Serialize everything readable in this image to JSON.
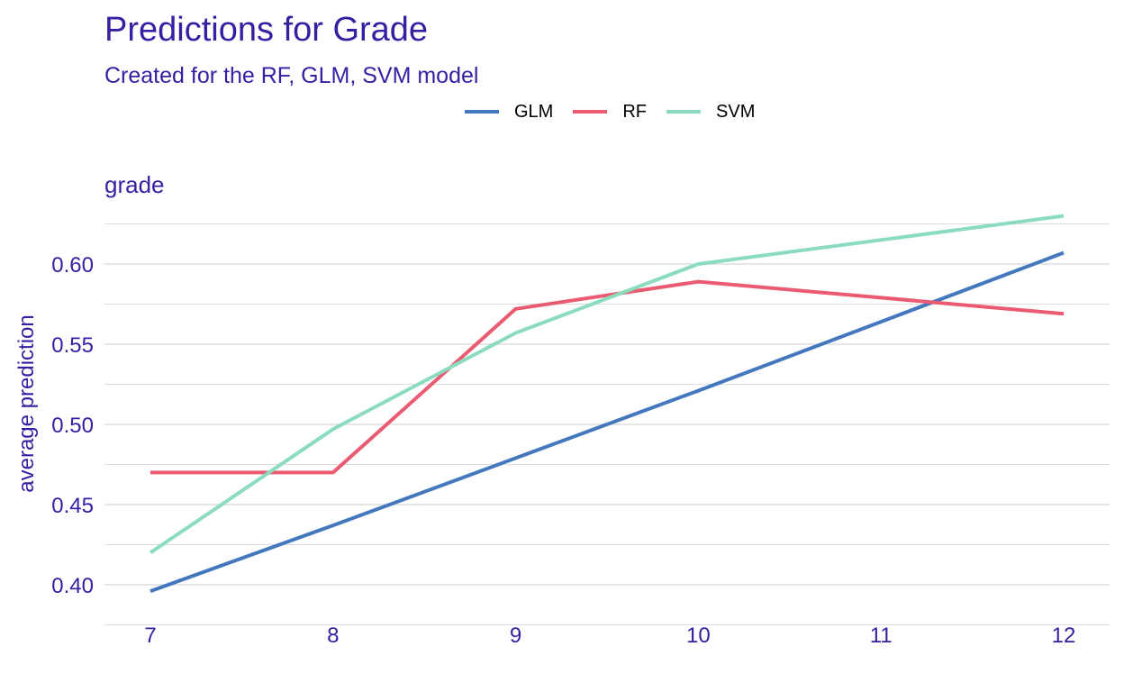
{
  "title": "Predictions for Grade",
  "subtitle": "Created for the RF, GLM, SVM model",
  "panel_label": "grade",
  "colors": {
    "text": "#371ea3",
    "grid": "#dddddd"
  },
  "legend": [
    {
      "label": "GLM",
      "color": "#4378bf"
    },
    {
      "label": "RF",
      "color": "#ea5a70"
    },
    {
      "label": "SVM",
      "color": "#8bdcbe"
    }
  ],
  "chart_data": {
    "type": "line",
    "title": "Predictions for Grade",
    "subtitle": "Created for the RF, GLM, SVM model",
    "panel": "grade",
    "xlabel": "",
    "ylabel": "average prediction",
    "x": [
      7,
      8,
      9,
      10,
      11,
      12
    ],
    "x_ticks": [
      "7",
      "8",
      "9",
      "10",
      "11",
      "12"
    ],
    "y_ticks": [
      "0.40",
      "0.45",
      "0.50",
      "0.55",
      "0.60"
    ],
    "xlim": [
      7,
      12
    ],
    "ylim": [
      0.395,
      0.63
    ],
    "grid": true,
    "legend_position": "top",
    "series": [
      {
        "name": "GLM",
        "color": "#4378bf",
        "values": [
          0.396,
          0.437,
          0.479,
          0.521,
          0.564,
          0.607
        ]
      },
      {
        "name": "RF",
        "color": "#ea5a70",
        "values": [
          0.47,
          0.47,
          0.572,
          0.589,
          0.579,
          0.569
        ]
      },
      {
        "name": "SVM",
        "color": "#8bdcbe",
        "values": [
          0.42,
          0.497,
          0.557,
          0.6,
          0.615,
          0.63
        ]
      }
    ]
  }
}
